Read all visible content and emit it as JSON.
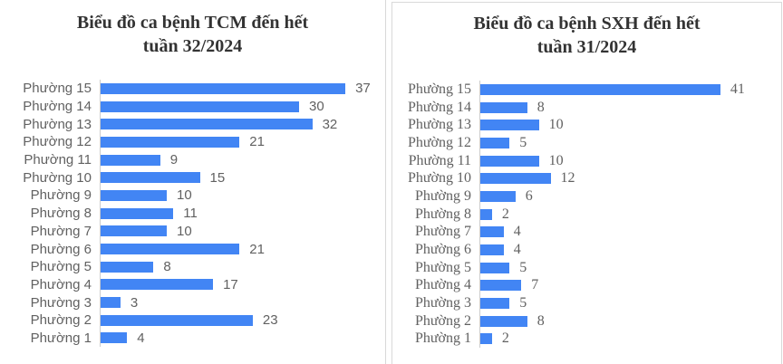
{
  "chart_data": [
    {
      "type": "bar",
      "orientation": "horizontal",
      "title": "Biểu đồ ca bệnh TCM đến hết tuần 32/2024",
      "title_line1": "Biểu đồ ca bệnh TCM đến hết",
      "title_line2": "tuần 32/2024",
      "categories": [
        "Phường 15",
        "Phường 14",
        "Phường 13",
        "Phường 12",
        "Phường 11",
        "Phường 10",
        "Phường 9",
        "Phường 8",
        "Phường 7",
        "Phường 6",
        "Phường 5",
        "Phường 4",
        "Phường 3",
        "Phường 2",
        "Phường 1"
      ],
      "values": [
        37,
        30,
        32,
        21,
        9,
        15,
        10,
        11,
        10,
        21,
        8,
        17,
        3,
        23,
        4
      ],
      "bar_color": "#4285f4",
      "data_labels_shown": true,
      "legend": "none",
      "gridlines": "off"
    },
    {
      "type": "bar",
      "orientation": "horizontal",
      "title": "Biểu đồ ca bệnh SXH đến hết tuần 31/2024",
      "title_line1": "Biểu đồ ca bệnh SXH đến hết",
      "title_line2": "tuần 31/2024",
      "categories": [
        "Phường 15",
        "Phường 14",
        "Phường 13",
        "Phường 12",
        "Phường 11",
        "Phường 10",
        "Phường 9",
        "Phường 8",
        "Phường 7",
        "Phường 6",
        "Phường 5",
        "Phường 4",
        "Phường 3",
        "Phường 2",
        "Phường 1"
      ],
      "values": [
        41,
        8,
        10,
        5,
        10,
        12,
        6,
        2,
        4,
        4,
        5,
        7,
        5,
        8,
        2
      ],
      "bar_color": "#4285f4",
      "data_labels_shown": true,
      "legend": "none",
      "gridlines": "off"
    }
  ],
  "colors": {
    "bar": "#4285f4",
    "axis_line": "#cccccc",
    "panel_border": "#d9d9d9",
    "title_text": "#333333",
    "label_text": "#616161",
    "background": "#ffffff"
  }
}
